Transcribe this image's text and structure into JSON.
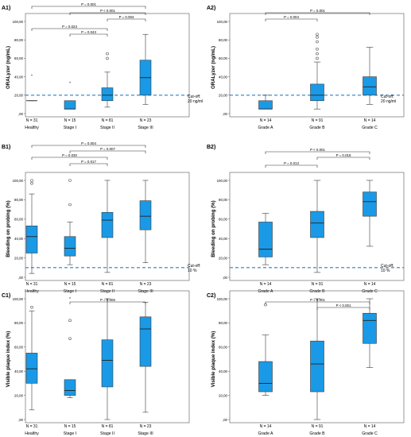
{
  "chart_data": [
    {
      "panel": "A1)",
      "type": "box",
      "ylabel": "ORALyzer (ng/mL)",
      "ylim": [
        0,
        100
      ],
      "yticks": [
        "100,00",
        "80,00",
        "60,00",
        "40,00",
        "20,00",
        ",00"
      ],
      "categories": [
        "Healthy",
        "Stage I",
        "Stage II",
        "Stage III"
      ],
      "n_labels": [
        "N = 31",
        "N = 15",
        "N = 81",
        "N = 23"
      ],
      "boxes": [
        {
          "min": 14,
          "q1": 14,
          "median": 14,
          "q3": 14,
          "max": 14,
          "outliers": [],
          "extremes": [
            41
          ]
        },
        {
          "min": 5,
          "q1": 5,
          "median": 5,
          "q3": 14,
          "max": 14,
          "outliers": [],
          "extremes": [
            33
          ]
        },
        {
          "min": 7,
          "q1": 14,
          "median": 20,
          "q3": 28,
          "max": 45,
          "outliers": [
            60,
            65
          ],
          "extremes": []
        },
        {
          "min": 10,
          "q1": 20,
          "median": 39,
          "q3": 58,
          "max": 86,
          "outliers": [],
          "extremes": []
        }
      ],
      "brackets": [
        {
          "from": 0,
          "to": 3,
          "label": "P = 0.001"
        },
        {
          "from": 1,
          "to": 3,
          "label": "P < 0.001"
        },
        {
          "from": 2,
          "to": 3,
          "label": "P = 0.004"
        },
        {
          "from": 0,
          "to": 2,
          "label": "P = 0.023"
        },
        {
          "from": 1,
          "to": 2,
          "label": "P = 0.043"
        }
      ],
      "cutoff": {
        "value": 20,
        "label": [
          "Cut-off:",
          "20 ng/ml"
        ]
      }
    },
    {
      "panel": "A2)",
      "type": "box",
      "ylabel": "ORALyzer (ng/mL)",
      "ylim": [
        0,
        100
      ],
      "yticks": [
        "100,00",
        "80,00",
        "60,00",
        "40,00",
        "20,00",
        ",00"
      ],
      "categories": [
        "Grade A",
        "Grade B",
        "Grade C"
      ],
      "n_labels": [
        "N = 14",
        "N = 91",
        "N = 14"
      ],
      "boxes": [
        {
          "min": 5,
          "q1": 5,
          "median": 5,
          "q3": 14,
          "max": 20,
          "outliers": [],
          "extremes": []
        },
        {
          "min": 5,
          "q1": 14,
          "median": 20,
          "q3": 32,
          "max": 56,
          "outliers": [
            60,
            65,
            70,
            78,
            83,
            86
          ],
          "extremes": []
        },
        {
          "min": 10,
          "q1": 20,
          "median": 29,
          "q3": 40,
          "max": 72,
          "outliers": [],
          "extremes": []
        }
      ],
      "brackets": [
        {
          "from": 0,
          "to": 2,
          "label": "P = 0.001"
        },
        {
          "from": 0,
          "to": 1,
          "label": "P = 0.004"
        }
      ],
      "cutoff": {
        "value": 20,
        "label": [
          "Cut-off:",
          "20 ng/ml"
        ]
      }
    },
    {
      "panel": "B1)",
      "type": "box",
      "ylabel": "Bleeding on probing (%)",
      "ylim": [
        0,
        100
      ],
      "yticks": [
        "100,00",
        "80,00",
        "60,00",
        "40,00",
        "20,00",
        ",00"
      ],
      "categories": [
        "Healthy",
        "Stage I",
        "Stage II",
        "Stage III"
      ],
      "n_labels": [
        "N = 31",
        "N = 15",
        "N = 81",
        "N = 23"
      ],
      "boxes": [
        {
          "min": 4,
          "q1": 25,
          "median": 42,
          "q3": 53,
          "max": 86,
          "outliers": [
            97,
            100
          ],
          "extremes": []
        },
        {
          "min": 13,
          "q1": 22,
          "median": 30,
          "q3": 42,
          "max": 57,
          "outliers": [
            75,
            100
          ],
          "extremes": []
        },
        {
          "min": 5,
          "q1": 41,
          "median": 59,
          "q3": 67,
          "max": 100,
          "outliers": [],
          "extremes": []
        },
        {
          "min": 15,
          "q1": 49,
          "median": 63,
          "q3": 79,
          "max": 100,
          "outliers": [],
          "extremes": []
        }
      ],
      "brackets": [
        {
          "from": 0,
          "to": 3,
          "label": "P = 0.004"
        },
        {
          "from": 1,
          "to": 3,
          "label": "P = 0.007"
        },
        {
          "from": 0,
          "to": 2,
          "label": "P = 0.030"
        },
        {
          "from": 1,
          "to": 2,
          "label": "P = 0.017"
        }
      ],
      "cutoff": {
        "value": 10,
        "label": [
          "Cut-off:",
          "10 %"
        ]
      }
    },
    {
      "panel": "B2)",
      "type": "box",
      "ylabel": "Bleeding on probing (%)",
      "ylim": [
        0,
        100
      ],
      "yticks": [
        "100,00",
        "80,00",
        "60,00",
        "40,00",
        "20,00",
        ",00"
      ],
      "categories": [
        "Grade A",
        "Grade B",
        "Grade C"
      ],
      "n_labels": [
        "N = 14",
        "N = 91",
        "N = 14"
      ],
      "boxes": [
        {
          "min": 13,
          "q1": 21,
          "median": 29,
          "q3": 57,
          "max": 66,
          "outliers": [],
          "extremes": []
        },
        {
          "min": 5,
          "q1": 41,
          "median": 56,
          "q3": 68,
          "max": 100,
          "outliers": [],
          "extremes": []
        },
        {
          "min": 32,
          "q1": 63,
          "median": 78,
          "q3": 88,
          "max": 100,
          "outliers": [],
          "extremes": []
        }
      ],
      "brackets": [
        {
          "from": 0,
          "to": 2,
          "label": "P < 0.001"
        },
        {
          "from": 0,
          "to": 1,
          "label": "P = 0.013"
        },
        {
          "from": 1,
          "to": 2,
          "label": "P = 0.018"
        }
      ],
      "cutoff": {
        "value": 10,
        "label": [
          "Cut-off:",
          "10 %"
        ]
      }
    },
    {
      "panel": "C1)",
      "type": "box",
      "ylabel": "Visible plaque index (%)",
      "ylim": [
        0,
        100
      ],
      "yticks": [
        "100,00",
        "80,00",
        "60,00",
        "40,00",
        "20,00",
        ",00"
      ],
      "categories": [
        "Healthy",
        "Stage I",
        "Stage II",
        "Stage III"
      ],
      "n_labels": [
        "N = 31",
        "N = 15",
        "N = 81",
        "N = 23"
      ],
      "boxes": [
        {
          "min": 8,
          "q1": 30,
          "median": 42,
          "q3": 55,
          "max": 90,
          "outliers": [
            93
          ],
          "extremes": []
        },
        {
          "min": 18,
          "q1": 20,
          "median": 24,
          "q3": 33,
          "max": 33,
          "outliers": [
            67,
            82
          ],
          "extremes": [
            100
          ]
        },
        {
          "min": 0,
          "q1": 27,
          "median": 49,
          "q3": 66,
          "max": 100,
          "outliers": [],
          "extremes": []
        },
        {
          "min": 6,
          "q1": 44,
          "median": 75,
          "q3": 85,
          "max": 97,
          "outliers": [],
          "extremes": []
        }
      ],
      "brackets": [
        {
          "from": 1,
          "to": 3,
          "label": "P = 0.006"
        }
      ],
      "cutoff": null
    },
    {
      "panel": "C2)",
      "type": "box",
      "ylabel": "Visible plaque index (%)",
      "ylim": [
        0,
        100
      ],
      "yticks": [
        "100,00",
        "80,00",
        "60,00",
        "40,00",
        "20,00",
        ",00"
      ],
      "categories": [
        "Grade A",
        "Grade B",
        "Grade C"
      ],
      "n_labels": [
        "N = 14",
        "N = 91",
        "N = 14"
      ],
      "boxes": [
        {
          "min": 20,
          "q1": 23,
          "median": 30,
          "q3": 48,
          "max": 70,
          "outliers": [
            95
          ],
          "extremes": []
        },
        {
          "min": 0,
          "q1": 23,
          "median": 46,
          "q3": 65,
          "max": 100,
          "outliers": [],
          "extremes": []
        },
        {
          "min": 43,
          "q1": 63,
          "median": 82,
          "q3": 88,
          "max": 100,
          "outliers": [],
          "extremes": []
        }
      ],
      "brackets": [
        {
          "from": 0,
          "to": 2,
          "label": "P = 0.001"
        },
        {
          "from": 1,
          "to": 2,
          "label": "P < 0.001"
        }
      ],
      "cutoff": null
    }
  ],
  "style": {
    "box_fill": "#1a9ae6",
    "box_stroke": "#3a3a3a",
    "cutoff_color": "#2a7fc9",
    "frame_color": "#555555",
    "text_color": "#000000"
  }
}
